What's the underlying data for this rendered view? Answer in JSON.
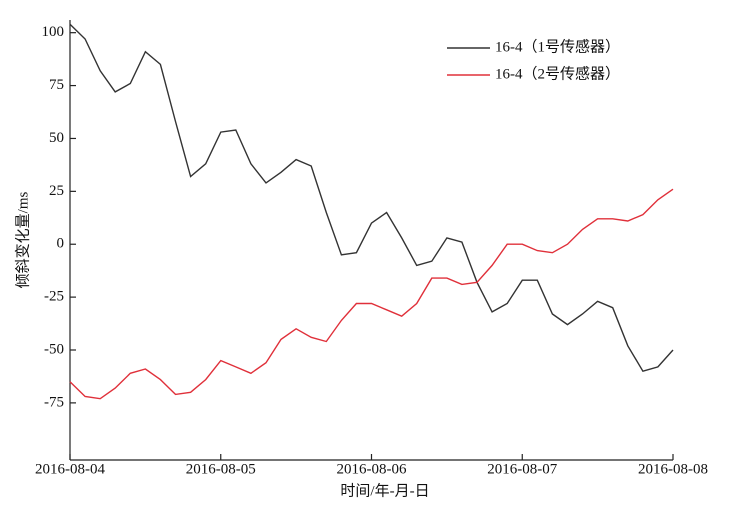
{
  "chart_data": {
    "type": "line",
    "x_label": "时间/年-月-日",
    "y_label": "倾斜变化量/ms",
    "x": [
      0,
      0.1,
      0.2,
      0.3,
      0.4,
      0.5,
      0.6,
      0.7,
      0.8,
      0.9,
      1,
      1.1,
      1.2,
      1.3,
      1.4,
      1.5,
      1.6,
      1.7,
      1.8,
      1.9,
      2,
      2.1,
      2.2,
      2.3,
      2.4,
      2.5,
      2.6,
      2.7,
      2.8,
      2.9,
      3,
      3.1,
      3.2,
      3.3,
      3.4,
      3.5,
      3.6,
      3.7,
      3.8,
      3.9,
      4
    ],
    "series": [
      {
        "name": "16-4（1号传感器）",
        "color": "#333333",
        "values": [
          104,
          97,
          82,
          72,
          76,
          91,
          85,
          58,
          32,
          38,
          53,
          54,
          38,
          29,
          34,
          40,
          37,
          15,
          -5,
          -4,
          10,
          15,
          3,
          -10,
          -8,
          3,
          1,
          -18,
          -32,
          -28,
          -17,
          -17,
          -33,
          -38,
          -33,
          -27,
          -30,
          -48,
          -60,
          -58,
          -50
        ]
      },
      {
        "name": "16-4（2号传感器）",
        "color": "#e0303a",
        "values": [
          -65,
          -72,
          -73,
          -68,
          -61,
          -59,
          -64,
          -71,
          -70,
          -64,
          -55,
          -58,
          -61,
          -56,
          -45,
          -40,
          -44,
          -46,
          -36,
          -28,
          -28,
          -31,
          -34,
          -28,
          -16,
          -16,
          -19,
          -18,
          -10,
          0,
          0,
          -3,
          -4,
          0,
          7,
          12,
          12,
          11,
          14,
          21,
          26
        ]
      }
    ],
    "xlim": [
      0,
      4
    ],
    "xticks": [
      {
        "value": 0,
        "label": "2016-08-04"
      },
      {
        "value": 1,
        "label": "2016-08-05"
      },
      {
        "value": 2,
        "label": "2016-08-06"
      },
      {
        "value": 3,
        "label": "2016-08-07"
      },
      {
        "value": 4,
        "label": "2016-08-08"
      }
    ],
    "ylim": [
      -102,
      106
    ],
    "yticks": [
      100,
      75,
      50,
      25,
      0,
      -25,
      -50,
      -75
    ],
    "grid": false,
    "legend": "upper right"
  }
}
